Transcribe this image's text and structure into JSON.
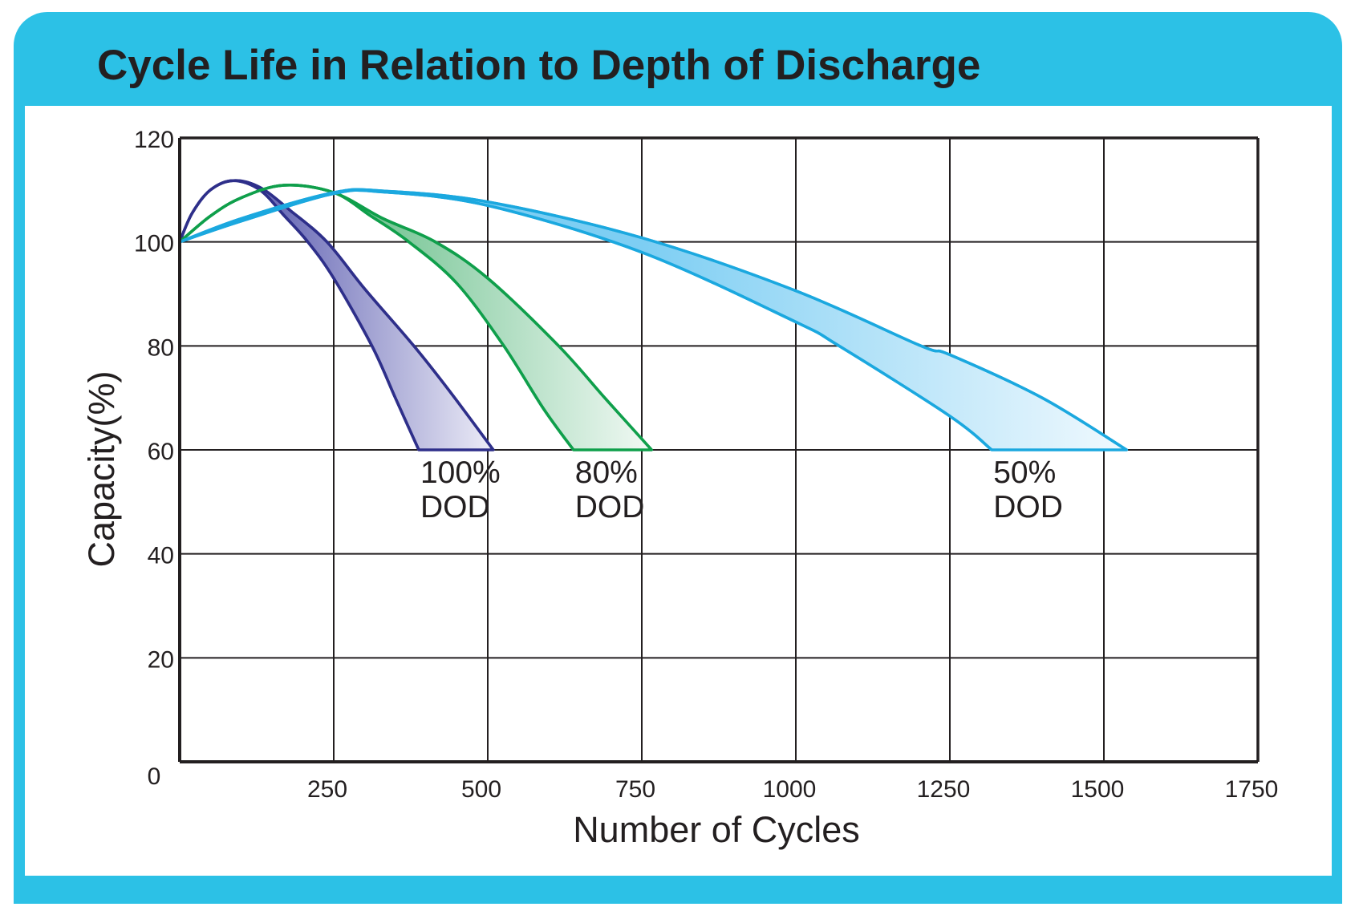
{
  "header": {
    "title": "Cycle Life in Relation to Depth of Discharge"
  },
  "colors": {
    "frame": "#2cc1e6",
    "axis": "#231f20"
  },
  "chart_data": {
    "type": "area",
    "title": "Cycle Life in Relation to Depth of Discharge",
    "xlabel": "Number of Cycles",
    "ylabel": "Capacity(%)",
    "xlim": [
      0,
      1750
    ],
    "ylim": [
      0,
      120
    ],
    "grid": true,
    "x_ticks": [
      250,
      500,
      750,
      1000,
      1250,
      1500,
      1750
    ],
    "x_tick_labels": [
      "250",
      "500",
      "750",
      "1000",
      "1250",
      "1500",
      "1750"
    ],
    "y_ticks": [
      0,
      20,
      40,
      60,
      80,
      100,
      120
    ],
    "y_tick_labels": [
      "0",
      "20",
      "40",
      "60",
      "80",
      "100",
      "120"
    ],
    "series": [
      {
        "name": "100% DOD",
        "label_lines": [
          "100%",
          "DOD"
        ],
        "label_anchor": [
          388,
          60
        ],
        "line_color": "#2e2f8a",
        "fill_start": "#6f70b9",
        "fill_end": "#ececf7",
        "upper": [
          [
            0,
            100
          ],
          [
            20,
            105.5
          ],
          [
            50,
            110
          ],
          [
            87,
            111.8
          ],
          [
            130,
            110.5
          ],
          [
            180,
            106
          ],
          [
            239,
            100
          ],
          [
            300,
            91
          ],
          [
            380,
            80
          ],
          [
            440,
            71
          ],
          [
            509,
            60
          ]
        ],
        "lower": [
          [
            0,
            100
          ],
          [
            20,
            105.5
          ],
          [
            50,
            110
          ],
          [
            87,
            111.8
          ],
          [
            130,
            110
          ],
          [
            170,
            105
          ],
          [
            208,
            100
          ],
          [
            250,
            93
          ],
          [
            312,
            80
          ],
          [
            350,
            70
          ],
          [
            388,
            60
          ]
        ]
      },
      {
        "name": "80% DOD",
        "label_lines": [
          "80%",
          "DOD"
        ],
        "label_anchor": [
          639,
          60
        ],
        "line_color": "#0f9f4b",
        "fill_start": "#74c493",
        "fill_end": "#f1f9f4",
        "upper": [
          [
            0,
            100
          ],
          [
            50,
            105
          ],
          [
            100,
            108.5
          ],
          [
            169,
            110.9
          ],
          [
            250,
            109.5
          ],
          [
            330,
            104.5
          ],
          [
            415,
            100
          ],
          [
            500,
            93
          ],
          [
            615,
            80
          ],
          [
            690,
            70
          ],
          [
            766,
            60
          ]
        ],
        "lower": [
          [
            0,
            100
          ],
          [
            50,
            105
          ],
          [
            100,
            108.5
          ],
          [
            169,
            110.9
          ],
          [
            250,
            109.5
          ],
          [
            310,
            105
          ],
          [
            372,
            100
          ],
          [
            450,
            92
          ],
          [
            526,
            80
          ],
          [
            590,
            68
          ],
          [
            639,
            60
          ]
        ]
      },
      {
        "name": "50% DOD",
        "label_lines": [
          "50%",
          "DOD"
        ],
        "label_anchor": [
          1318,
          60
        ],
        "line_color": "#1ba8df",
        "fill_start": "#7dcef3",
        "fill_end": "#f0f9fe",
        "upper": [
          [
            0,
            100
          ],
          [
            100,
            104.5
          ],
          [
            250,
            109.5
          ],
          [
            330,
            109.8
          ],
          [
            500,
            107.7
          ],
          [
            750,
            100.8
          ],
          [
            1000,
            90.6
          ],
          [
            1203,
            80
          ],
          [
            1250,
            78.3
          ],
          [
            1400,
            70
          ],
          [
            1537,
            60
          ]
        ],
        "lower": [
          [
            0,
            100
          ],
          [
            100,
            104
          ],
          [
            250,
            109.3
          ],
          [
            330,
            109.6
          ],
          [
            500,
            107
          ],
          [
            750,
            98
          ],
          [
            1000,
            84.6
          ],
          [
            1070,
            80
          ],
          [
            1250,
            66.5
          ],
          [
            1318,
            60
          ]
        ]
      }
    ]
  }
}
